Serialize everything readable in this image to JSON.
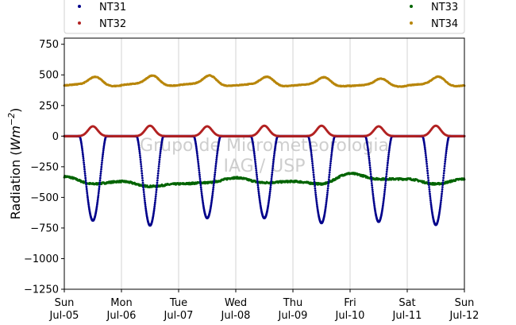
{
  "chart_data": {
    "type": "scatter",
    "ylabel": "Radiation (Wm^-2)",
    "ylim": [
      -1250,
      800
    ],
    "yticks": [
      -1250,
      -1000,
      -750,
      -500,
      -250,
      0,
      250,
      500,
      750
    ],
    "xlim": [
      "2020-07-05 00:00",
      "2020-07-12 00:00"
    ],
    "xticks": [
      {
        "x": "2020-07-05",
        "day": "Sun",
        "date": "Jul-05"
      },
      {
        "x": "2020-07-06",
        "day": "Mon",
        "date": "Jul-06"
      },
      {
        "x": "2020-07-07",
        "day": "Tue",
        "date": "Jul-07"
      },
      {
        "x": "2020-07-08",
        "day": "Wed",
        "date": "Jul-08"
      },
      {
        "x": "2020-07-09",
        "day": "Thu",
        "date": "Jul-09"
      },
      {
        "x": "2020-07-10",
        "day": "Fri",
        "date": "Jul-10"
      },
      {
        "x": "2020-07-11",
        "day": "Sat",
        "date": "Jul-11"
      },
      {
        "x": "2020-07-12",
        "day": "Sun",
        "date": "Jul-12"
      }
    ],
    "grid": "vertical",
    "legend_position": "top",
    "watermark": [
      "Grupo de Micrometeorologia",
      "IAG / USP"
    ],
    "series": [
      {
        "name": "NT31",
        "color": "#00008b",
        "night_value": 0,
        "daily_minimum": [
          {
            "day": "2020-07-05",
            "value": -690
          },
          {
            "day": "2020-07-06",
            "value": -730
          },
          {
            "day": "2020-07-07",
            "value": -670
          },
          {
            "day": "2020-07-08",
            "value": -670
          },
          {
            "day": "2020-07-09",
            "value": -710
          },
          {
            "day": "2020-07-10",
            "value": -700
          },
          {
            "day": "2020-07-11",
            "value": -725
          }
        ]
      },
      {
        "name": "NT32",
        "color": "#b22222",
        "night_value": 0,
        "daily_maximum": [
          {
            "day": "2020-07-05",
            "value": 80
          },
          {
            "day": "2020-07-06",
            "value": 85
          },
          {
            "day": "2020-07-07",
            "value": 80
          },
          {
            "day": "2020-07-08",
            "value": 85
          },
          {
            "day": "2020-07-09",
            "value": 85
          },
          {
            "day": "2020-07-10",
            "value": 80
          },
          {
            "day": "2020-07-11",
            "value": 85
          }
        ]
      },
      {
        "name": "NT33",
        "color": "#006400",
        "points": [
          {
            "x": "2020-07-05 00:00",
            "y": -330
          },
          {
            "x": "2020-07-05 12:00",
            "y": -390
          },
          {
            "x": "2020-07-06 00:00",
            "y": -370
          },
          {
            "x": "2020-07-06 12:00",
            "y": -410
          },
          {
            "x": "2020-07-07 00:00",
            "y": -390
          },
          {
            "x": "2020-07-07 12:00",
            "y": -380
          },
          {
            "x": "2020-07-08 00:00",
            "y": -340
          },
          {
            "x": "2020-07-08 12:00",
            "y": -380
          },
          {
            "x": "2020-07-09 00:00",
            "y": -370
          },
          {
            "x": "2020-07-09 12:00",
            "y": -390
          },
          {
            "x": "2020-07-10 00:00",
            "y": -305
          },
          {
            "x": "2020-07-10 12:00",
            "y": -350
          },
          {
            "x": "2020-07-11 00:00",
            "y": -350
          },
          {
            "x": "2020-07-11 12:00",
            "y": -390
          },
          {
            "x": "2020-07-12 00:00",
            "y": -350
          }
        ]
      },
      {
        "name": "NT34",
        "color": "#b8860b",
        "night_value": 380,
        "daily_maximum": [
          {
            "day": "2020-07-05",
            "value": 485
          },
          {
            "day": "2020-07-06",
            "value": 495
          },
          {
            "day": "2020-07-07",
            "value": 495
          },
          {
            "day": "2020-07-08",
            "value": 485
          },
          {
            "day": "2020-07-09",
            "value": 480
          },
          {
            "day": "2020-07-10",
            "value": 470
          },
          {
            "day": "2020-07-11",
            "value": 485
          }
        ]
      }
    ]
  }
}
